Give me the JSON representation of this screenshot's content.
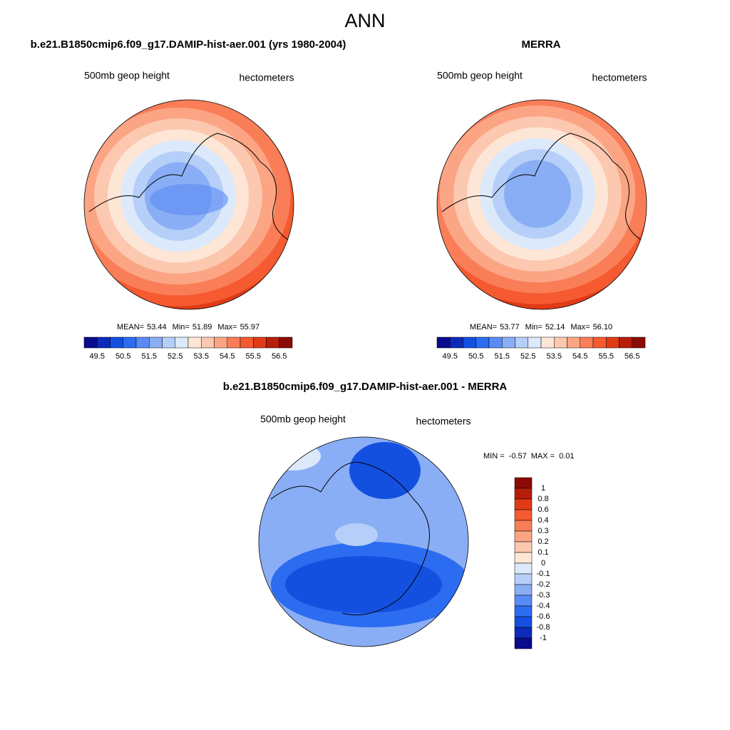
{
  "title": "ANN",
  "panels": [
    {
      "title": "b.e21.B1850cmip6.f09_g17.DAMIP-hist-aer.001 (yrs 1980-2004)",
      "variable": "500mb geop height",
      "units": "hectometers",
      "stats": [
        {
          "label": "MEAN=",
          "value": "53.44"
        },
        {
          "label": "Min=",
          "value": "51.89"
        },
        {
          "label": "Max=",
          "value": "55.97"
        }
      ]
    },
    {
      "title": "MERRA",
      "variable": "500mb geop height",
      "units": "hectometers",
      "stats": [
        {
          "label": "MEAN=",
          "value": "53.77"
        },
        {
          "label": "Min=",
          "value": "52.14"
        },
        {
          "label": "Max=",
          "value": "56.10"
        }
      ]
    }
  ],
  "colorbar": {
    "labels": [
      49.5,
      50.5,
      51.5,
      52.5,
      53.5,
      54.5,
      55.5,
      56.5
    ],
    "colors": [
      "#0a0a8c",
      "#0d2bb8",
      "#1450e0",
      "#2c6cf0",
      "#5a8af5",
      "#8aaef5",
      "#b6cff8",
      "#dbe9fb",
      "#fde6d6",
      "#fcc8b0",
      "#fba585",
      "#f97e58",
      "#f55a30",
      "#e03a16",
      "#b81d0a",
      "#8b0a05"
    ]
  },
  "difference": {
    "title": "b.e21.B1850cmip6.f09_g17.DAMIP-hist-aer.001 - MERRA",
    "variable": "500mb geop height",
    "units": "hectometers",
    "stats": [
      {
        "label": "MIN =",
        "value": "-0.57"
      },
      {
        "label": "MAX =",
        "value": "0.01"
      }
    ],
    "colorbar": {
      "labels": [
        1,
        0.8,
        0.6,
        0.4,
        0.3,
        0.2,
        0.1,
        0,
        -0.1,
        -0.2,
        -0.3,
        -0.4,
        -0.6,
        -0.8,
        -1
      ],
      "colors": [
        "#8b0a05",
        "#b81d0a",
        "#e03a16",
        "#f55a30",
        "#f97e58",
        "#fba585",
        "#fcc8b0",
        "#fde6d6",
        "#dbe9fb",
        "#b6cff8",
        "#8aaef5",
        "#5a8af5",
        "#2c6cf0",
        "#1450e0",
        "#0d2bb8",
        "#0a0a8c"
      ]
    }
  }
}
